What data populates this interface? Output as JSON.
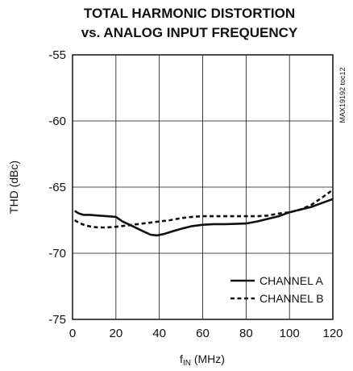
{
  "chart_data": {
    "type": "line",
    "title_line1": "TOTAL HARMONIC DISTORTION",
    "title_line2": "vs. ANALOG INPUT FREQUENCY",
    "xlabel_main": "f",
    "xlabel_sub": "IN",
    "xlabel_unit": " (MHz)",
    "ylabel": "THD (dBc)",
    "side_label": "MAX19192 toc12",
    "xlim": [
      0,
      120
    ],
    "ylim": [
      -75,
      -55
    ],
    "xticks": [
      "0",
      "20",
      "40",
      "60",
      "80",
      "100",
      "120"
    ],
    "yticks": [
      "-55",
      "-60",
      "-65",
      "-70",
      "-75"
    ],
    "grid": true,
    "legend_position": "bottom-right",
    "series": [
      {
        "name": "CHANNEL A",
        "style": "solid",
        "x": [
          1,
          3,
          5,
          8,
          12,
          16,
          20,
          23,
          27,
          32,
          36,
          39,
          42,
          46,
          50,
          55,
          60,
          65,
          70,
          75,
          80,
          85,
          90,
          95,
          100,
          105,
          110,
          115,
          120
        ],
        "y": [
          -66.8,
          -67.0,
          -67.1,
          -67.1,
          -67.15,
          -67.2,
          -67.25,
          -67.6,
          -67.9,
          -68.3,
          -68.6,
          -68.65,
          -68.55,
          -68.35,
          -68.15,
          -67.95,
          -67.85,
          -67.8,
          -67.8,
          -67.78,
          -67.75,
          -67.6,
          -67.4,
          -67.2,
          -66.9,
          -66.7,
          -66.5,
          -66.2,
          -65.9
        ]
      },
      {
        "name": "CHANNEL B",
        "style": "dashed",
        "x": [
          1,
          3,
          6,
          9,
          12,
          16,
          20,
          25,
          30,
          35,
          40,
          45,
          50,
          55,
          60,
          65,
          70,
          75,
          80,
          85,
          90,
          95,
          100,
          105,
          110,
          115,
          120
        ],
        "y": [
          -67.5,
          -67.7,
          -67.9,
          -68.0,
          -68.05,
          -68.05,
          -68.0,
          -67.9,
          -67.8,
          -67.7,
          -67.6,
          -67.5,
          -67.35,
          -67.25,
          -67.2,
          -67.2,
          -67.2,
          -67.2,
          -67.2,
          -67.2,
          -67.15,
          -67.0,
          -66.9,
          -66.7,
          -66.35,
          -65.8,
          -65.2
        ]
      }
    ]
  }
}
